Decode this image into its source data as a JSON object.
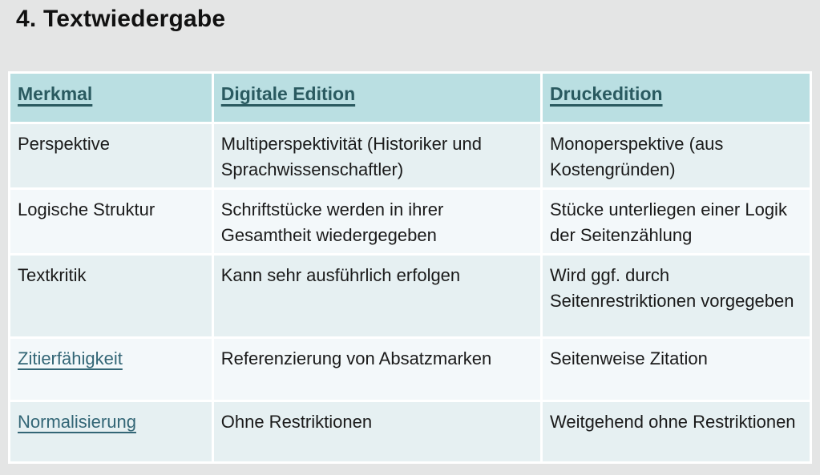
{
  "page": {
    "title": "4. Textwiedergabe"
  },
  "table": {
    "headers": {
      "merkmal": "Merkmal",
      "digital": "Digitale Edition",
      "druck": "Druckedition"
    },
    "rows": [
      {
        "merkmal": "Perspektive",
        "digital": "Multiperspektivität (Historiker und Sprachwissenschaftler)",
        "druck": "Monoperspektive (aus Kostengründen)"
      },
      {
        "merkmal": "Logische Struktur",
        "digital": "Schriftstücke werden in ihrer Gesamtheit wiedergegeben",
        "druck": "Stücke unterliegen einer Logik der Seitenzählung"
      },
      {
        "merkmal": "Textkritik",
        "digital": "Kann sehr ausführlich erfolgen",
        "druck": "Wird ggf. durch Seitenrestriktionen vorgegeben"
      },
      {
        "merkmal": "Zitierfähigkeit",
        "digital": "Referenzierung von Absatzmarken",
        "druck": "Seitenweise Zitation"
      },
      {
        "merkmal": "Normalisierung",
        "digital": "Ohne Restriktionen",
        "druck": "Weitgehend ohne Restriktionen"
      }
    ]
  },
  "colors": {
    "page_background": "#e4e5e5",
    "header_background": "#badfe2",
    "row_odd_background": "#e6f0f2",
    "row_even_background": "#f3f8fa",
    "header_text": "#2a5a60",
    "link_text": "#336676",
    "body_text": "#1a1a1a",
    "cell_gap": "#ffffff"
  }
}
